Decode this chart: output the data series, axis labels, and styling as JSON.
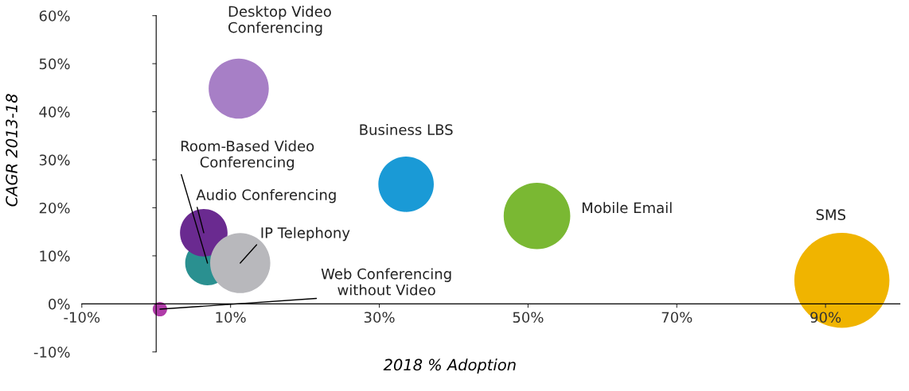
{
  "chart_data": {
    "type": "bubble",
    "xlabel": "2018 % Adoption",
    "ylabel": "CAGR 2013-18",
    "xlim": [
      -10,
      100
    ],
    "ylim": [
      -10,
      60
    ],
    "xticks": [
      {
        "value": -10,
        "label": "-10%"
      },
      {
        "value": 10,
        "label": "10%"
      },
      {
        "value": 30,
        "label": "30%"
      },
      {
        "value": 50,
        "label": "50%"
      },
      {
        "value": 70,
        "label": "70%"
      },
      {
        "value": 90,
        "label": "90%"
      }
    ],
    "yticks": [
      {
        "value": -10,
        "label": "-10%"
      },
      {
        "value": 0,
        "label": "0%"
      },
      {
        "value": 10,
        "label": "10%"
      },
      {
        "value": 20,
        "label": "20%"
      },
      {
        "value": 30,
        "label": "30%"
      },
      {
        "value": 40,
        "label": "40%"
      },
      {
        "value": 50,
        "label": "50%"
      },
      {
        "value": 60,
        "label": "60%"
      }
    ],
    "grid": false,
    "legend": false,
    "series": [
      {
        "name": "Desktop Video\nConferencing",
        "color": "#a77fc6",
        "x": [
          11.1
        ],
        "values": [
          44.8
        ],
        "sizes": [
          0.4
        ]
      },
      {
        "name": "Business LBS",
        "color": "#1a9ad6",
        "x": [
          33.6
        ],
        "values": [
          24.9
        ],
        "sizes": [
          0.34
        ]
      },
      {
        "name": "Mobile Email",
        "color": "#7ab833",
        "x": [
          51.2
        ],
        "values": [
          18.3
        ],
        "sizes": [
          0.49
        ]
      },
      {
        "name": "SMS",
        "color": "#f0b400",
        "x": [
          92.2
        ],
        "values": [
          4.9
        ],
        "sizes": [
          1
        ]
      },
      {
        "name": "Room-Based Video\nConferencing",
        "color": "#2a9090",
        "x": [
          6.9
        ],
        "values": [
          8.5
        ],
        "sizes": [
          0.22
        ]
      },
      {
        "name": "Audio Conferencing",
        "color": "#6a2a90",
        "x": [
          6.4
        ],
        "values": [
          14.8
        ],
        "sizes": [
          0.25
        ]
      },
      {
        "name": "IP Telephony",
        "color": "#b8b8bc",
        "x": [
          11.3
        ],
        "values": [
          8.5
        ],
        "sizes": [
          0.4
        ]
      },
      {
        "name": "Web Conferencing\nwithout Video",
        "color": "#b03ca8",
        "x": [
          0.5
        ],
        "values": [
          -1.1
        ],
        "sizes": [
          0.023
        ]
      }
    ]
  }
}
